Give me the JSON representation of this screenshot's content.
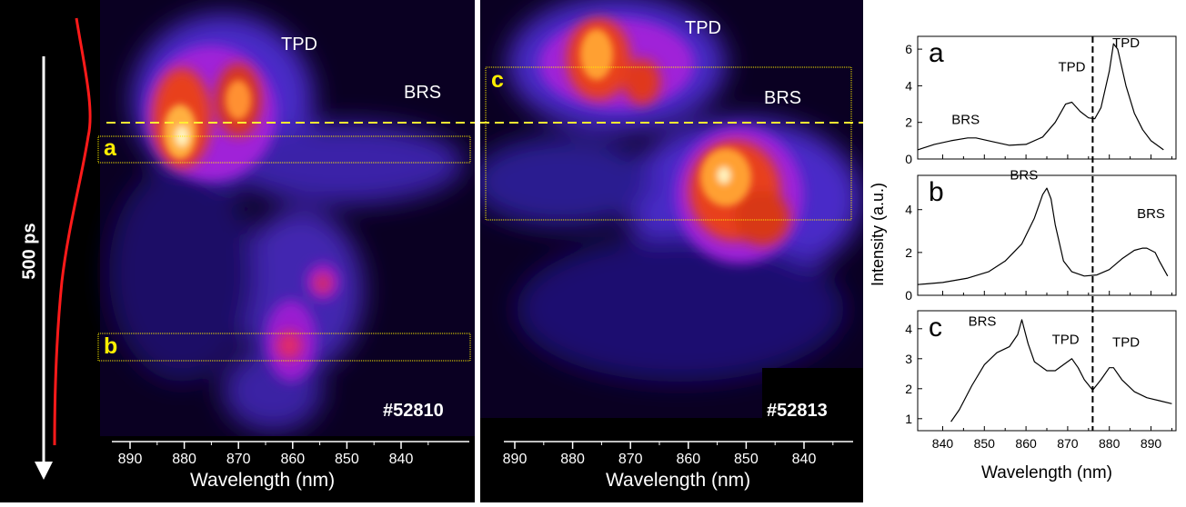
{
  "streak1": {
    "label_tpd": "TPD",
    "label_brs": "BRS",
    "shot": "#52810",
    "box_a": "a",
    "box_b": "b",
    "time_label": "500 ps",
    "xlabel": "Wavelength (nm)",
    "xticks": [
      "890",
      "880",
      "870",
      "860",
      "850",
      "840"
    ]
  },
  "streak2": {
    "label_tpd": "TPD",
    "label_brs": "BRS",
    "shot": "#52813",
    "box_c": "c",
    "xlabel": "Wavelength (nm)",
    "xticks": [
      "890",
      "880",
      "870",
      "860",
      "850",
      "840"
    ]
  },
  "chart_data": {
    "type": "line",
    "xlabel": "Wavelength (nm)",
    "ylabel": "Intensity (a.u.)",
    "xlim": [
      834,
      896
    ],
    "xticks": [
      840,
      850,
      860,
      870,
      880,
      890
    ],
    "vline_x": 876,
    "panels": [
      {
        "letter": "a",
        "ylim": [
          0,
          6.7
        ],
        "yticks": [
          0,
          2,
          4,
          6
        ],
        "annotations": [
          {
            "text": "BRS",
            "x": 845.5,
            "y": 1.9
          },
          {
            "text": "TPD",
            "x": 871,
            "y": 4.8
          },
          {
            "text": "TPD",
            "x": 884,
            "y": 6.1
          }
        ],
        "x": [
          834,
          838,
          842,
          846,
          848,
          852,
          856,
          860,
          864,
          867,
          869.5,
          871,
          873,
          875,
          876.5,
          878,
          880,
          881,
          882,
          884,
          886,
          888,
          890,
          893
        ],
        "y": [
          0.5,
          0.8,
          1.0,
          1.15,
          1.15,
          0.95,
          0.75,
          0.8,
          1.2,
          2.0,
          3.0,
          3.1,
          2.6,
          2.25,
          2.2,
          2.8,
          4.8,
          6.3,
          6.0,
          4.0,
          2.5,
          1.6,
          1.0,
          0.5
        ]
      },
      {
        "letter": "b",
        "ylim": [
          0,
          5.6
        ],
        "yticks": [
          0,
          2,
          4
        ],
        "annotations": [
          {
            "text": "BRS",
            "x": 859.5,
            "y": 5.4
          },
          {
            "text": "BRS",
            "x": 890,
            "y": 3.6
          }
        ],
        "x": [
          834,
          840,
          846,
          851,
          855,
          859,
          862,
          864,
          865,
          866,
          867,
          869,
          871,
          874,
          877,
          880,
          883,
          886,
          888,
          889,
          891,
          892,
          894
        ],
        "y": [
          0.5,
          0.6,
          0.8,
          1.1,
          1.6,
          2.4,
          3.6,
          4.7,
          5.0,
          4.5,
          3.3,
          1.6,
          1.1,
          0.9,
          0.95,
          1.2,
          1.7,
          2.1,
          2.2,
          2.2,
          2.0,
          1.6,
          0.9
        ]
      },
      {
        "letter": "c",
        "ylim": [
          0.6,
          4.6
        ],
        "yticks": [
          1,
          2,
          3,
          4
        ],
        "annotations": [
          {
            "text": "BRS",
            "x": 849.5,
            "y": 4.1
          },
          {
            "text": "TPD",
            "x": 869.5,
            "y": 3.5
          },
          {
            "text": "TPD",
            "x": 884,
            "y": 3.4
          }
        ],
        "x": [
          842,
          844,
          847,
          850,
          853,
          856,
          858,
          859,
          860.5,
          862,
          865,
          867,
          869,
          871,
          872.5,
          874,
          876,
          878,
          880,
          881,
          883,
          886,
          889,
          892,
          895
        ],
        "y": [
          0.9,
          1.3,
          2.1,
          2.8,
          3.2,
          3.4,
          3.8,
          4.3,
          3.5,
          2.9,
          2.6,
          2.6,
          2.8,
          3.0,
          2.7,
          2.3,
          1.95,
          2.3,
          2.7,
          2.7,
          2.3,
          1.9,
          1.7,
          1.6,
          1.5
        ]
      }
    ]
  }
}
